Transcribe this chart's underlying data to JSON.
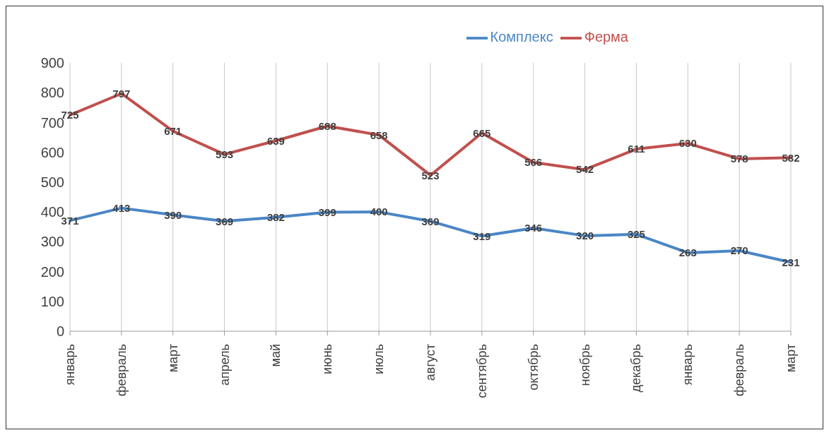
{
  "chart_data": {
    "type": "line",
    "categories": [
      "январь",
      "февраль",
      "март",
      "апрель",
      "май",
      "июнь",
      "июль",
      "август",
      "сентябрь",
      "октябрь",
      "ноябрь",
      "декабрь",
      "январь",
      "февраль",
      "март"
    ],
    "series": [
      {
        "name": "Комплекс",
        "color": "#4a86c5",
        "values": [
          371,
          413,
          390,
          369,
          382,
          399,
          400,
          369,
          319,
          346,
          320,
          325,
          263,
          270,
          231
        ]
      },
      {
        "name": "Ферма",
        "color": "#c0504d",
        "values": [
          725,
          797,
          671,
          593,
          639,
          688,
          658,
          523,
          665,
          566,
          542,
          611,
          630,
          578,
          582
        ]
      }
    ],
    "ylim": [
      0,
      900
    ],
    "yticks": [
      0,
      100,
      200,
      300,
      400,
      500,
      600,
      700,
      800,
      900
    ],
    "grid": "x",
    "legend": "top right",
    "marker": "none",
    "line_style": "solid",
    "data_labels": true
  }
}
